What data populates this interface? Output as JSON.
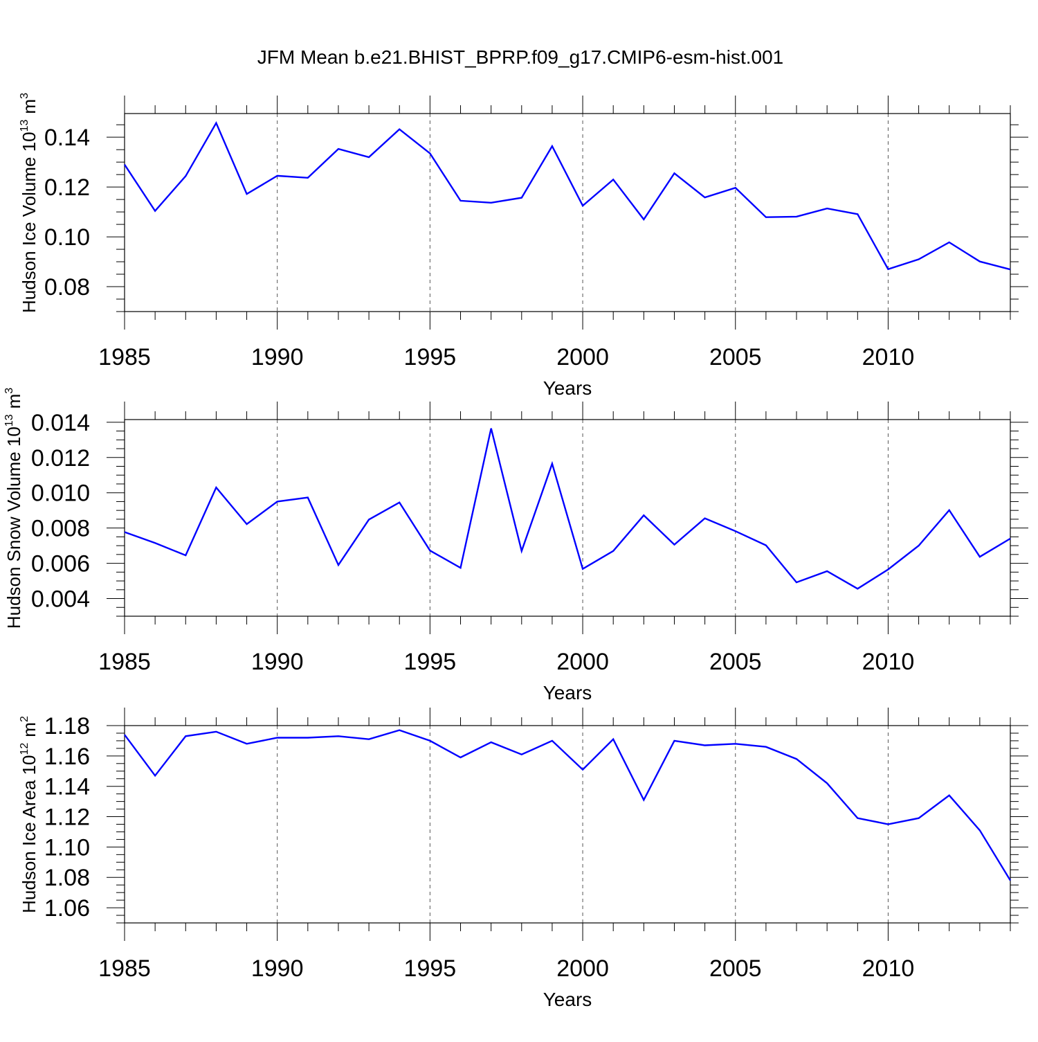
{
  "title": "JFM Mean b.e21.BHIST_BPRP.f09_g17.CMIP6-esm-hist.001",
  "colors": {
    "series": "#0000ff",
    "axis": "#000000",
    "grid": "#555555"
  },
  "chart_data": [
    {
      "type": "line",
      "ylabel": "Hudson Ice Volume",
      "yunit_base": "10",
      "yunit_exp": "13",
      "yunit_suffix": "m",
      "yunit_suffix_exp": "3",
      "xlabel": "Years",
      "xlim": [
        1985,
        2014
      ],
      "ylim": [
        0.07,
        0.1495
      ],
      "xticks": [
        1985,
        1990,
        1995,
        2000,
        2005,
        2010
      ],
      "xtick_labels": [
        "1985",
        "1990",
        "1995",
        "2000",
        "2005",
        "2010"
      ],
      "yticks": [
        0.08,
        0.1,
        0.12,
        0.14
      ],
      "ytick_labels": [
        "0.08",
        "0.10",
        "0.12",
        "0.14"
      ],
      "yminor_step": 0.005,
      "x": [
        1985,
        1986,
        1987,
        1988,
        1989,
        1990,
        1991,
        1992,
        1993,
        1994,
        1995,
        1996,
        1997,
        1998,
        1999,
        2000,
        2001,
        2002,
        2003,
        2004,
        2005,
        2006,
        2007,
        2008,
        2009,
        2010,
        2011,
        2012,
        2013,
        2014
      ],
      "values": [
        0.129,
        0.1104,
        0.1244,
        0.1457,
        0.1172,
        0.1245,
        0.1237,
        0.1353,
        0.132,
        0.1432,
        0.1335,
        0.1145,
        0.1137,
        0.1157,
        0.1364,
        0.1125,
        0.123,
        0.107,
        0.1255,
        0.1158,
        0.1197,
        0.1079,
        0.1081,
        0.1114,
        0.1091,
        0.087,
        0.091,
        0.0978,
        0.0901,
        0.0869
      ]
    },
    {
      "type": "line",
      "ylabel": "Hudson Snow Volume",
      "yunit_base": "10",
      "yunit_exp": "13",
      "yunit_suffix": "m",
      "yunit_suffix_exp": "3",
      "xlabel": "Years",
      "xlim": [
        1985,
        2014
      ],
      "ylim": [
        0.003,
        0.01415
      ],
      "xticks": [
        1985,
        1990,
        1995,
        2000,
        2005,
        2010
      ],
      "xtick_labels": [
        "1985",
        "1990",
        "1995",
        "2000",
        "2005",
        "2010"
      ],
      "yticks": [
        0.004,
        0.006,
        0.008,
        0.01,
        0.012,
        0.014
      ],
      "ytick_labels": [
        "0.004",
        "0.006",
        "0.008",
        "0.010",
        "0.012",
        "0.014"
      ],
      "yminor_step": 0.0005,
      "x": [
        1985,
        1986,
        1987,
        1988,
        1989,
        1990,
        1991,
        1992,
        1993,
        1994,
        1995,
        1996,
        1997,
        1998,
        1999,
        2000,
        2001,
        2002,
        2003,
        2004,
        2005,
        2006,
        2007,
        2008,
        2009,
        2010,
        2011,
        2012,
        2013,
        2014
      ],
      "values": [
        0.00777,
        0.00715,
        0.00645,
        0.0103,
        0.00822,
        0.0095,
        0.00973,
        0.0059,
        0.00848,
        0.00945,
        0.00672,
        0.00574,
        0.01365,
        0.0067,
        0.01165,
        0.00568,
        0.0067,
        0.00872,
        0.00706,
        0.00855,
        0.00782,
        0.00702,
        0.00492,
        0.00555,
        0.00456,
        0.00565,
        0.007,
        0.00901,
        0.00637,
        0.0074
      ]
    },
    {
      "type": "line",
      "ylabel": "Hudson Ice Area",
      "yunit_base": "10",
      "yunit_exp": "12",
      "yunit_suffix": "m",
      "yunit_suffix_exp": "2",
      "xlabel": "Years",
      "xlim": [
        1985,
        2014
      ],
      "ylim": [
        1.05,
        1.18
      ],
      "xticks": [
        1985,
        1990,
        1995,
        2000,
        2005,
        2010
      ],
      "xtick_labels": [
        "1985",
        "1990",
        "1995",
        "2000",
        "2005",
        "2010"
      ],
      "yticks": [
        1.06,
        1.08,
        1.1,
        1.12,
        1.14,
        1.16,
        1.18
      ],
      "ytick_labels": [
        "1.06",
        "1.08",
        "1.10",
        "1.12",
        "1.14",
        "1.16",
        "1.18"
      ],
      "yminor_step": 0.005,
      "x": [
        1985,
        1986,
        1987,
        1988,
        1989,
        1990,
        1991,
        1992,
        1993,
        1994,
        1995,
        1996,
        1997,
        1998,
        1999,
        2000,
        2001,
        2002,
        2003,
        2004,
        2005,
        2006,
        2007,
        2008,
        2009,
        2010,
        2011,
        2012,
        2013,
        2014
      ],
      "values": [
        1.174,
        1.147,
        1.173,
        1.176,
        1.168,
        1.172,
        1.172,
        1.173,
        1.171,
        1.177,
        1.17,
        1.159,
        1.169,
        1.161,
        1.17,
        1.151,
        1.171,
        1.131,
        1.17,
        1.167,
        1.168,
        1.166,
        1.158,
        1.142,
        1.119,
        1.115,
        1.119,
        1.134,
        1.111,
        1.078
      ]
    }
  ]
}
